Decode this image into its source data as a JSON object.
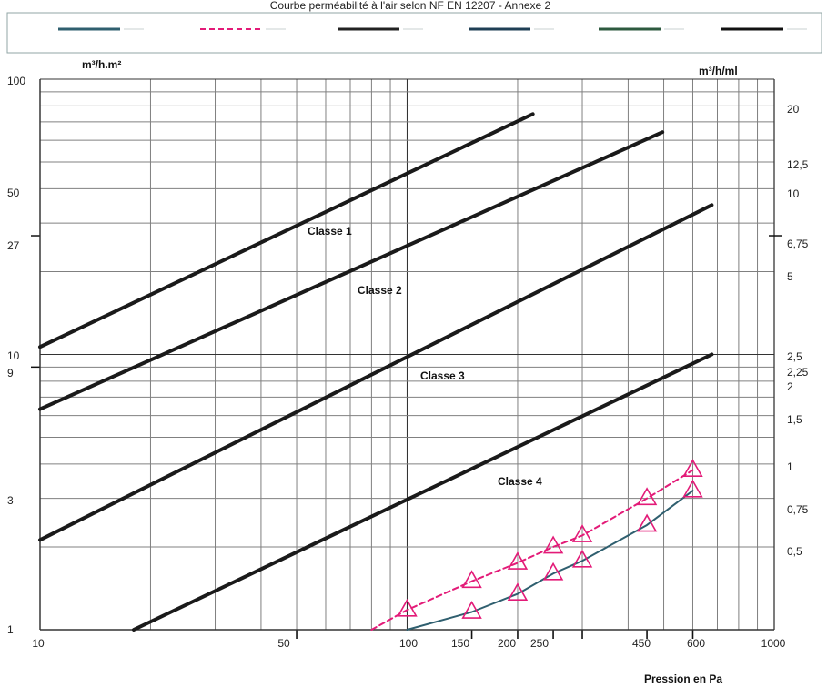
{
  "page": {
    "title_text": "Courbe perméabilité à l'air selon NF EN 12207 - Annexe 2"
  },
  "chart_data": {
    "type": "line",
    "title": "Courbe perméabilité à l'air selon NF EN 12207 - Annexe 2",
    "left_axis_label": "m³/h.m²",
    "right_axis_label": "m³/h/ml",
    "x_axis_label": "Pression en Pa",
    "x_scale": "log",
    "y_scale": "log",
    "xlim": [
      10,
      1000
    ],
    "ylim": [
      1,
      100
    ],
    "x_tick_labels": [
      {
        "value": 10,
        "label": "10"
      },
      {
        "value": 50,
        "label": "50"
      },
      {
        "value": 100,
        "label": "100"
      },
      {
        "value": 150,
        "label": "150"
      },
      {
        "value": 200,
        "label": "200"
      },
      {
        "value": 250,
        "label": "250"
      },
      {
        "value": 450,
        "label": "450"
      },
      {
        "value": 600,
        "label": "600"
      },
      {
        "value": 1000,
        "label": "1000"
      }
    ],
    "y_tick_labels_left": [
      {
        "value": 1,
        "label": "1"
      },
      {
        "value": 3,
        "label": "3"
      },
      {
        "value": 9,
        "label": "9"
      },
      {
        "value": 10,
        "label": "10"
      },
      {
        "value": 27,
        "label": "27"
      },
      {
        "value": 50,
        "label": "50"
      },
      {
        "value": 100,
        "label": "100"
      }
    ],
    "y_tick_labels_right": [
      {
        "value": 1,
        "label": "0,5"
      },
      {
        "value": 2,
        "label": "0,75"
      },
      {
        "value": 3,
        "label": "1"
      },
      {
        "value": 4,
        "label": "1,5"
      },
      {
        "value": 5,
        "label": "2"
      },
      {
        "value": 6,
        "label": "2,25"
      },
      {
        "value": 7,
        "label": "2,5"
      },
      {
        "value": 8,
        "label": "5"
      },
      {
        "value": 9,
        "label": "6,75"
      },
      {
        "value": 10,
        "label": "10"
      },
      {
        "value": 11,
        "label": "12,5"
      },
      {
        "value": 12,
        "label": "20"
      }
    ],
    "series": [
      {
        "name": "Classe 1",
        "x": [
          10,
          220
        ],
        "y": [
          10.65,
          74.7
        ]
      },
      {
        "name": "Classe 2",
        "x": [
          10,
          496
        ],
        "y": [
          6.33,
          64.2
        ]
      },
      {
        "name": "Classe 3",
        "x": [
          10,
          676
        ],
        "y": [
          2.12,
          34.9
        ]
      },
      {
        "name": "Classe 4",
        "x": [
          18,
          676
        ],
        "y": [
          1.0,
          10.0
        ]
      },
      {
        "x": [
          80,
          100,
          150,
          200,
          250,
          300,
          450,
          600
        ],
        "y": [
          1.0,
          1.18,
          1.5,
          1.75,
          2.0,
          2.2,
          3.0,
          3.8
        ]
      },
      {
        "x": [
          100,
          150,
          200,
          250,
          300,
          450,
          600
        ],
        "y": [
          1.0,
          1.16,
          1.35,
          1.6,
          1.78,
          2.4,
          3.2
        ]
      }
    ],
    "triangle_points": [
      {
        "x": 100,
        "y": 1.18
      },
      {
        "x": 150,
        "y": 1.5
      },
      {
        "x": 200,
        "y": 1.75
      },
      {
        "x": 250,
        "y": 2.0
      },
      {
        "x": 300,
        "y": 2.2
      },
      {
        "x": 450,
        "y": 3.0
      },
      {
        "x": 600,
        "y": 3.8
      },
      {
        "x": 150,
        "y": 1.16
      },
      {
        "x": 200,
        "y": 1.35
      },
      {
        "x": 250,
        "y": 1.6
      },
      {
        "x": 300,
        "y": 1.78
      },
      {
        "x": 450,
        "y": 2.4
      },
      {
        "x": 600,
        "y": 3.2
      }
    ],
    "legend_items": [
      {
        "style": "solid",
        "color": "#2f5f6f"
      },
      {
        "style": "dashed",
        "color": "#e31b78"
      },
      {
        "style": "solid",
        "color": "#222222"
      },
      {
        "style": "solid",
        "color": "#1f3f55"
      },
      {
        "style": "solid",
        "color": "#2d5a3f"
      },
      {
        "style": "solid",
        "color": "#111111"
      }
    ],
    "class_labels": [
      {
        "label": "Classe 1"
      },
      {
        "label": "Classe 2"
      },
      {
        "label": "Classe 3"
      },
      {
        "label": "Classe 4"
      }
    ],
    "colors": {
      "black": "#111111",
      "magenta": "#e31b78",
      "teal": "#2f5f6f"
    }
  }
}
